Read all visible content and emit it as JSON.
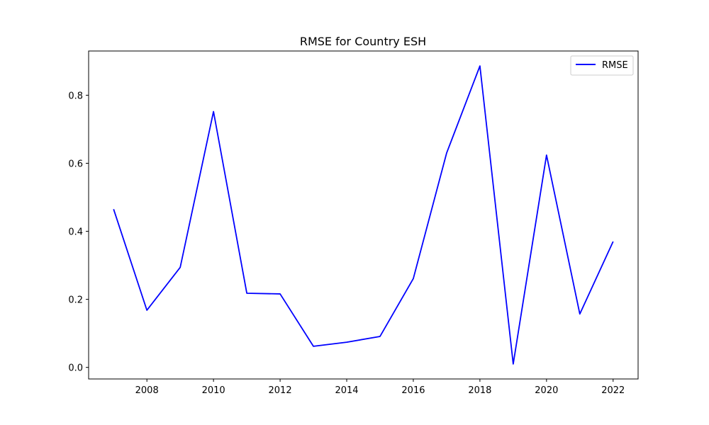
{
  "chart_data": {
    "type": "line",
    "title": "RMSE for Country ESH",
    "xlabel": "",
    "ylabel": "",
    "x": [
      2007,
      2008,
      2009,
      2010,
      2011,
      2012,
      2013,
      2014,
      2015,
      2016,
      2017,
      2018,
      2019,
      2020,
      2021,
      2022
    ],
    "series": [
      {
        "name": "RMSE",
        "color": "#0000ff",
        "values": [
          0.465,
          0.168,
          0.294,
          0.752,
          0.218,
          0.216,
          0.062,
          0.074,
          0.091,
          0.261,
          0.63,
          0.886,
          0.01,
          0.624,
          0.157,
          0.37
        ]
      }
    ],
    "xticks": [
      2008,
      2010,
      2012,
      2014,
      2016,
      2018,
      2020,
      2022
    ],
    "yticks": [
      0.0,
      0.2,
      0.4,
      0.6,
      0.8
    ],
    "ytick_labels": [
      "0.0",
      "0.2",
      "0.4",
      "0.6",
      "0.8"
    ],
    "xlim": [
      2006.25,
      2022.75
    ],
    "ylim": [
      -0.034,
      0.93
    ],
    "grid": false,
    "legend_position": "top-right"
  }
}
